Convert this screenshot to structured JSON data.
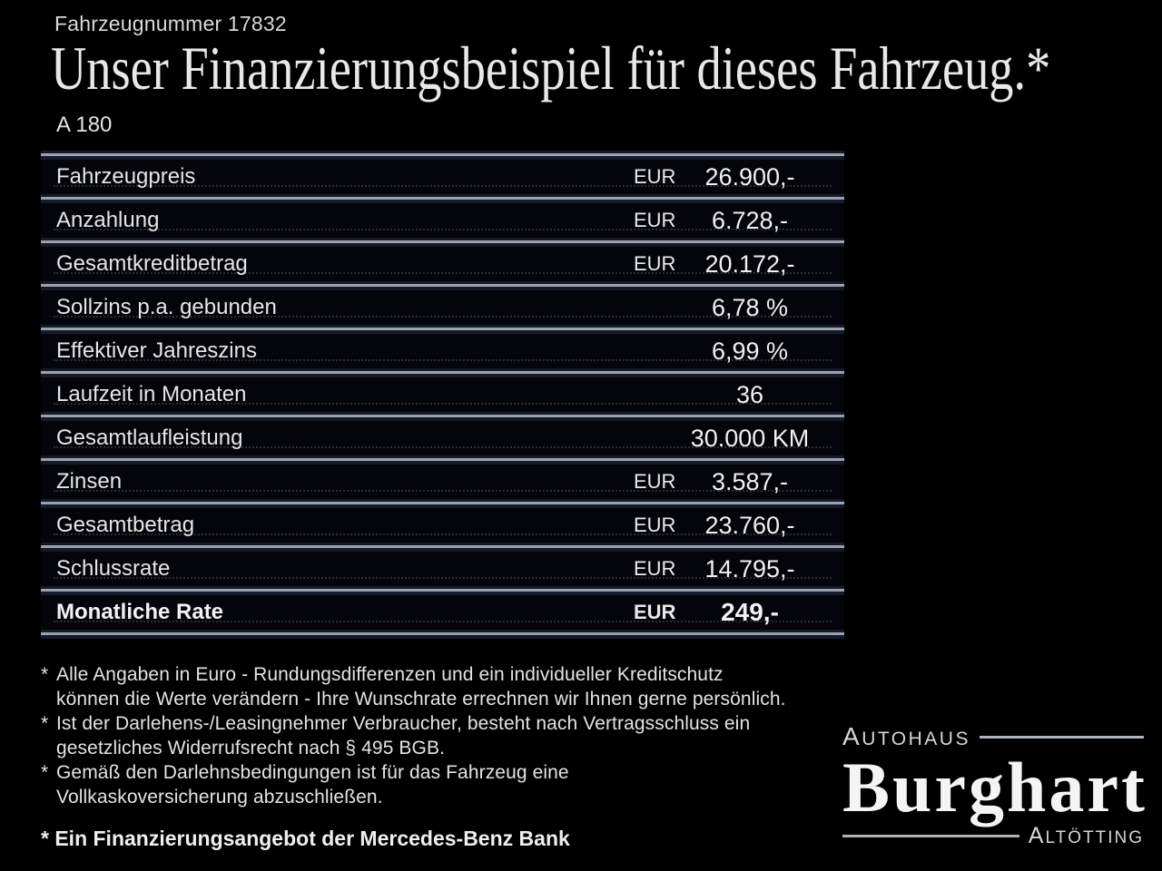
{
  "page": {
    "vehicle_number": "Fahrzeugnummer 17832",
    "title": "Unser Finanzierungsbeispiel für dieses Fahrzeug.*",
    "model": "A 180",
    "footer_note": "* Ein Finanzierungsangebot der Mercedes-Benz Bank"
  },
  "table": {
    "rows": [
      {
        "label": "Fahrzeugpreis",
        "unit": "EUR",
        "value": "26.900,-",
        "bold": false
      },
      {
        "label": "Anzahlung",
        "unit": "EUR",
        "value": "6.728,-",
        "bold": false
      },
      {
        "label": "Gesamtkreditbetrag",
        "unit": "EUR",
        "value": "20.172,-",
        "bold": false
      },
      {
        "label": "Sollzins p.a. gebunden",
        "unit": "",
        "value": "6,78 %",
        "bold": false
      },
      {
        "label": "Effektiver Jahreszins",
        "unit": "",
        "value": "6,99 %",
        "bold": false
      },
      {
        "label": "Laufzeit in Monaten",
        "unit": "",
        "value": "36",
        "bold": false
      },
      {
        "label": "Gesamtlaufleistung",
        "unit": "",
        "value": "30.000 KM",
        "bold": false
      },
      {
        "label": "Zinsen",
        "unit": "EUR",
        "value": "3.587,-",
        "bold": false
      },
      {
        "label": "Gesamtbetrag",
        "unit": "EUR",
        "value": "23.760,-",
        "bold": false
      },
      {
        "label": "Schlussrate",
        "unit": "EUR",
        "value": "14.795,-",
        "bold": false
      },
      {
        "label": "Monatliche Rate",
        "unit": "EUR",
        "value": "249,-",
        "bold": true
      }
    ]
  },
  "footnotes": [
    {
      "marker": "*",
      "lines": [
        "Alle Angaben in Euro - Rundungsdifferenzen und ein individueller Kreditschutz",
        "können die Werte verändern - Ihre Wunschrate errechnen wir Ihnen gerne persönlich."
      ]
    },
    {
      "marker": "*",
      "lines": [
        "Ist der Darlehens-/Leasingnehmer Verbraucher, besteht nach Vertragsschluss ein",
        "gesetzliches Widerrufsrecht nach § 495 BGB."
      ]
    },
    {
      "marker": "*",
      "lines": [
        "Gemäß den Darlehnsbedingungen ist für das Fahrzeug eine",
        "Vollkaskoversicherung abzuschließen."
      ]
    }
  ],
  "dealer": {
    "top": "AUTOHAUS",
    "name": "Burghart",
    "bottom": "ALTÖTTING"
  },
  "colors": {
    "background": "#000000",
    "text": "#e9e9e9",
    "separator_line": "#9ba1ad",
    "separator_shadow": "#141a29",
    "leader_dots": "#2c2c33",
    "logo_line": "#aeb2ba"
  }
}
